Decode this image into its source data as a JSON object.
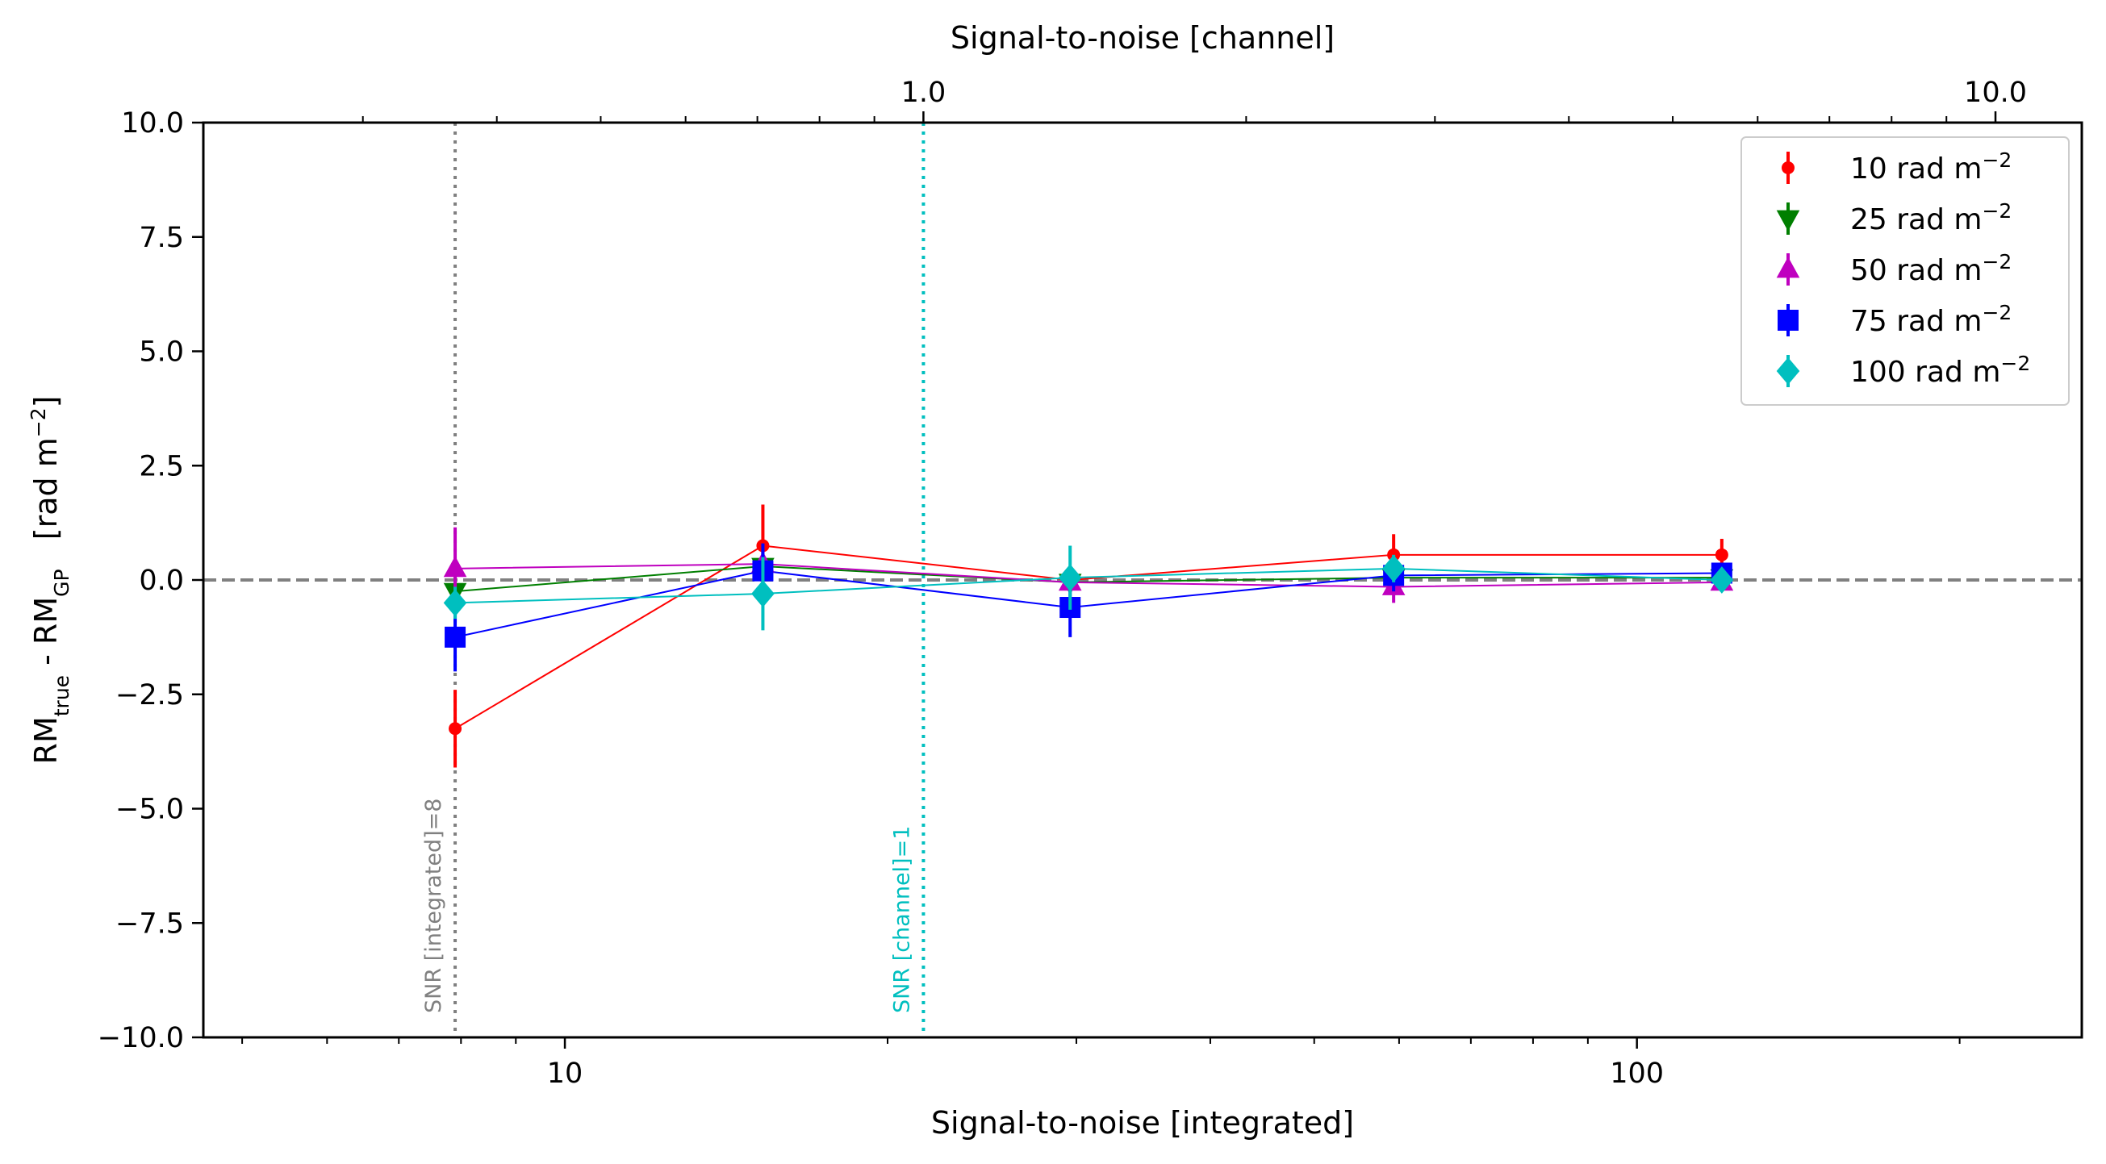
{
  "chart_data": {
    "type": "scatter",
    "xlabel": "Signal-to-noise [integrated]",
    "x2label": "Signal-to-noise [channel]",
    "ylabel_base": "RM",
    "ylabel_sub1": "true",
    "ylabel_mid": " - RM",
    "ylabel_sub2": "GP",
    "ylabel_unit": "[rad m",
    "ylabel_unit_sup": "−2",
    "ylabel_unit_end": "]",
    "x_scale": "log",
    "xlim": [
      4.6,
      260
    ],
    "ylim": [
      -10,
      10
    ],
    "x_ticks": [
      10,
      100
    ],
    "x_tick_labels": [
      "10",
      "100"
    ],
    "x2_scale": "log",
    "x2_to_x_factor": 21.6,
    "x2_ticks": [
      1.0,
      10.0
    ],
    "x2_tick_labels": [
      "1.0",
      "10.0"
    ],
    "y_ticks": [
      10,
      7.5,
      5,
      2.5,
      0,
      -2.5,
      -5,
      -7.5,
      -10
    ],
    "y_tick_labels": [
      "10.0",
      "7.5",
      "5.0",
      "2.5",
      "0.0",
      "−2.5",
      "−5.0",
      "−7.5",
      "−10.0"
    ],
    "zero_line": {
      "y": 0,
      "color": "#808080",
      "style": "dashed"
    },
    "vertical_lines": [
      {
        "x": 7.9,
        "color": "#808080",
        "label": "SNR [integrated]=8"
      },
      {
        "x": 21.6,
        "color": "#00bfbf",
        "label": "SNR [channel]=1"
      }
    ],
    "legend_position": "upper right",
    "series": [
      {
        "name": "10 rad m",
        "name_sup": "−2",
        "color": "#ff0000",
        "marker": "circle",
        "x": [
          7.9,
          15.3,
          29.6,
          59.3,
          120
        ],
        "y": [
          -3.25,
          0.75,
          0.0,
          0.55,
          0.55
        ],
        "yerr": [
          0.85,
          0.9,
          0.2,
          0.45,
          0.35
        ]
      },
      {
        "name": "25 rad m",
        "name_sup": "−2",
        "color": "#007f00",
        "marker": "triangle-down",
        "x": [
          7.9,
          15.3,
          29.6,
          59.3,
          120
        ],
        "y": [
          -0.25,
          0.3,
          -0.05,
          0.05,
          0.05
        ],
        "yerr": [
          0.4,
          0.35,
          0.2,
          0.2,
          0.15
        ]
      },
      {
        "name": "50 rad m",
        "name_sup": "−2",
        "color": "#bf00bf",
        "marker": "triangle-up",
        "x": [
          7.9,
          15.3,
          29.6,
          59.3,
          120
        ],
        "y": [
          0.25,
          0.35,
          -0.05,
          -0.15,
          -0.05
        ],
        "yerr": [
          0.9,
          0.3,
          0.2,
          0.35,
          0.2
        ]
      },
      {
        "name": "75 rad m",
        "name_sup": "−2",
        "color": "#0000ff",
        "marker": "square",
        "x": [
          7.9,
          15.3,
          29.6,
          59.3,
          120
        ],
        "y": [
          -1.25,
          0.2,
          -0.6,
          0.1,
          0.15
        ],
        "yerr": [
          0.75,
          0.6,
          0.65,
          0.35,
          0.2
        ]
      },
      {
        "name": "100 rad m",
        "name_sup": "−2",
        "color": "#00bfbf",
        "marker": "diamond",
        "x": [
          7.9,
          15.3,
          29.6,
          59.3,
          120
        ],
        "y": [
          -0.5,
          -0.3,
          0.05,
          0.25,
          0.0
        ],
        "yerr": [
          0.35,
          0.8,
          0.7,
          0.3,
          0.2
        ]
      }
    ]
  }
}
